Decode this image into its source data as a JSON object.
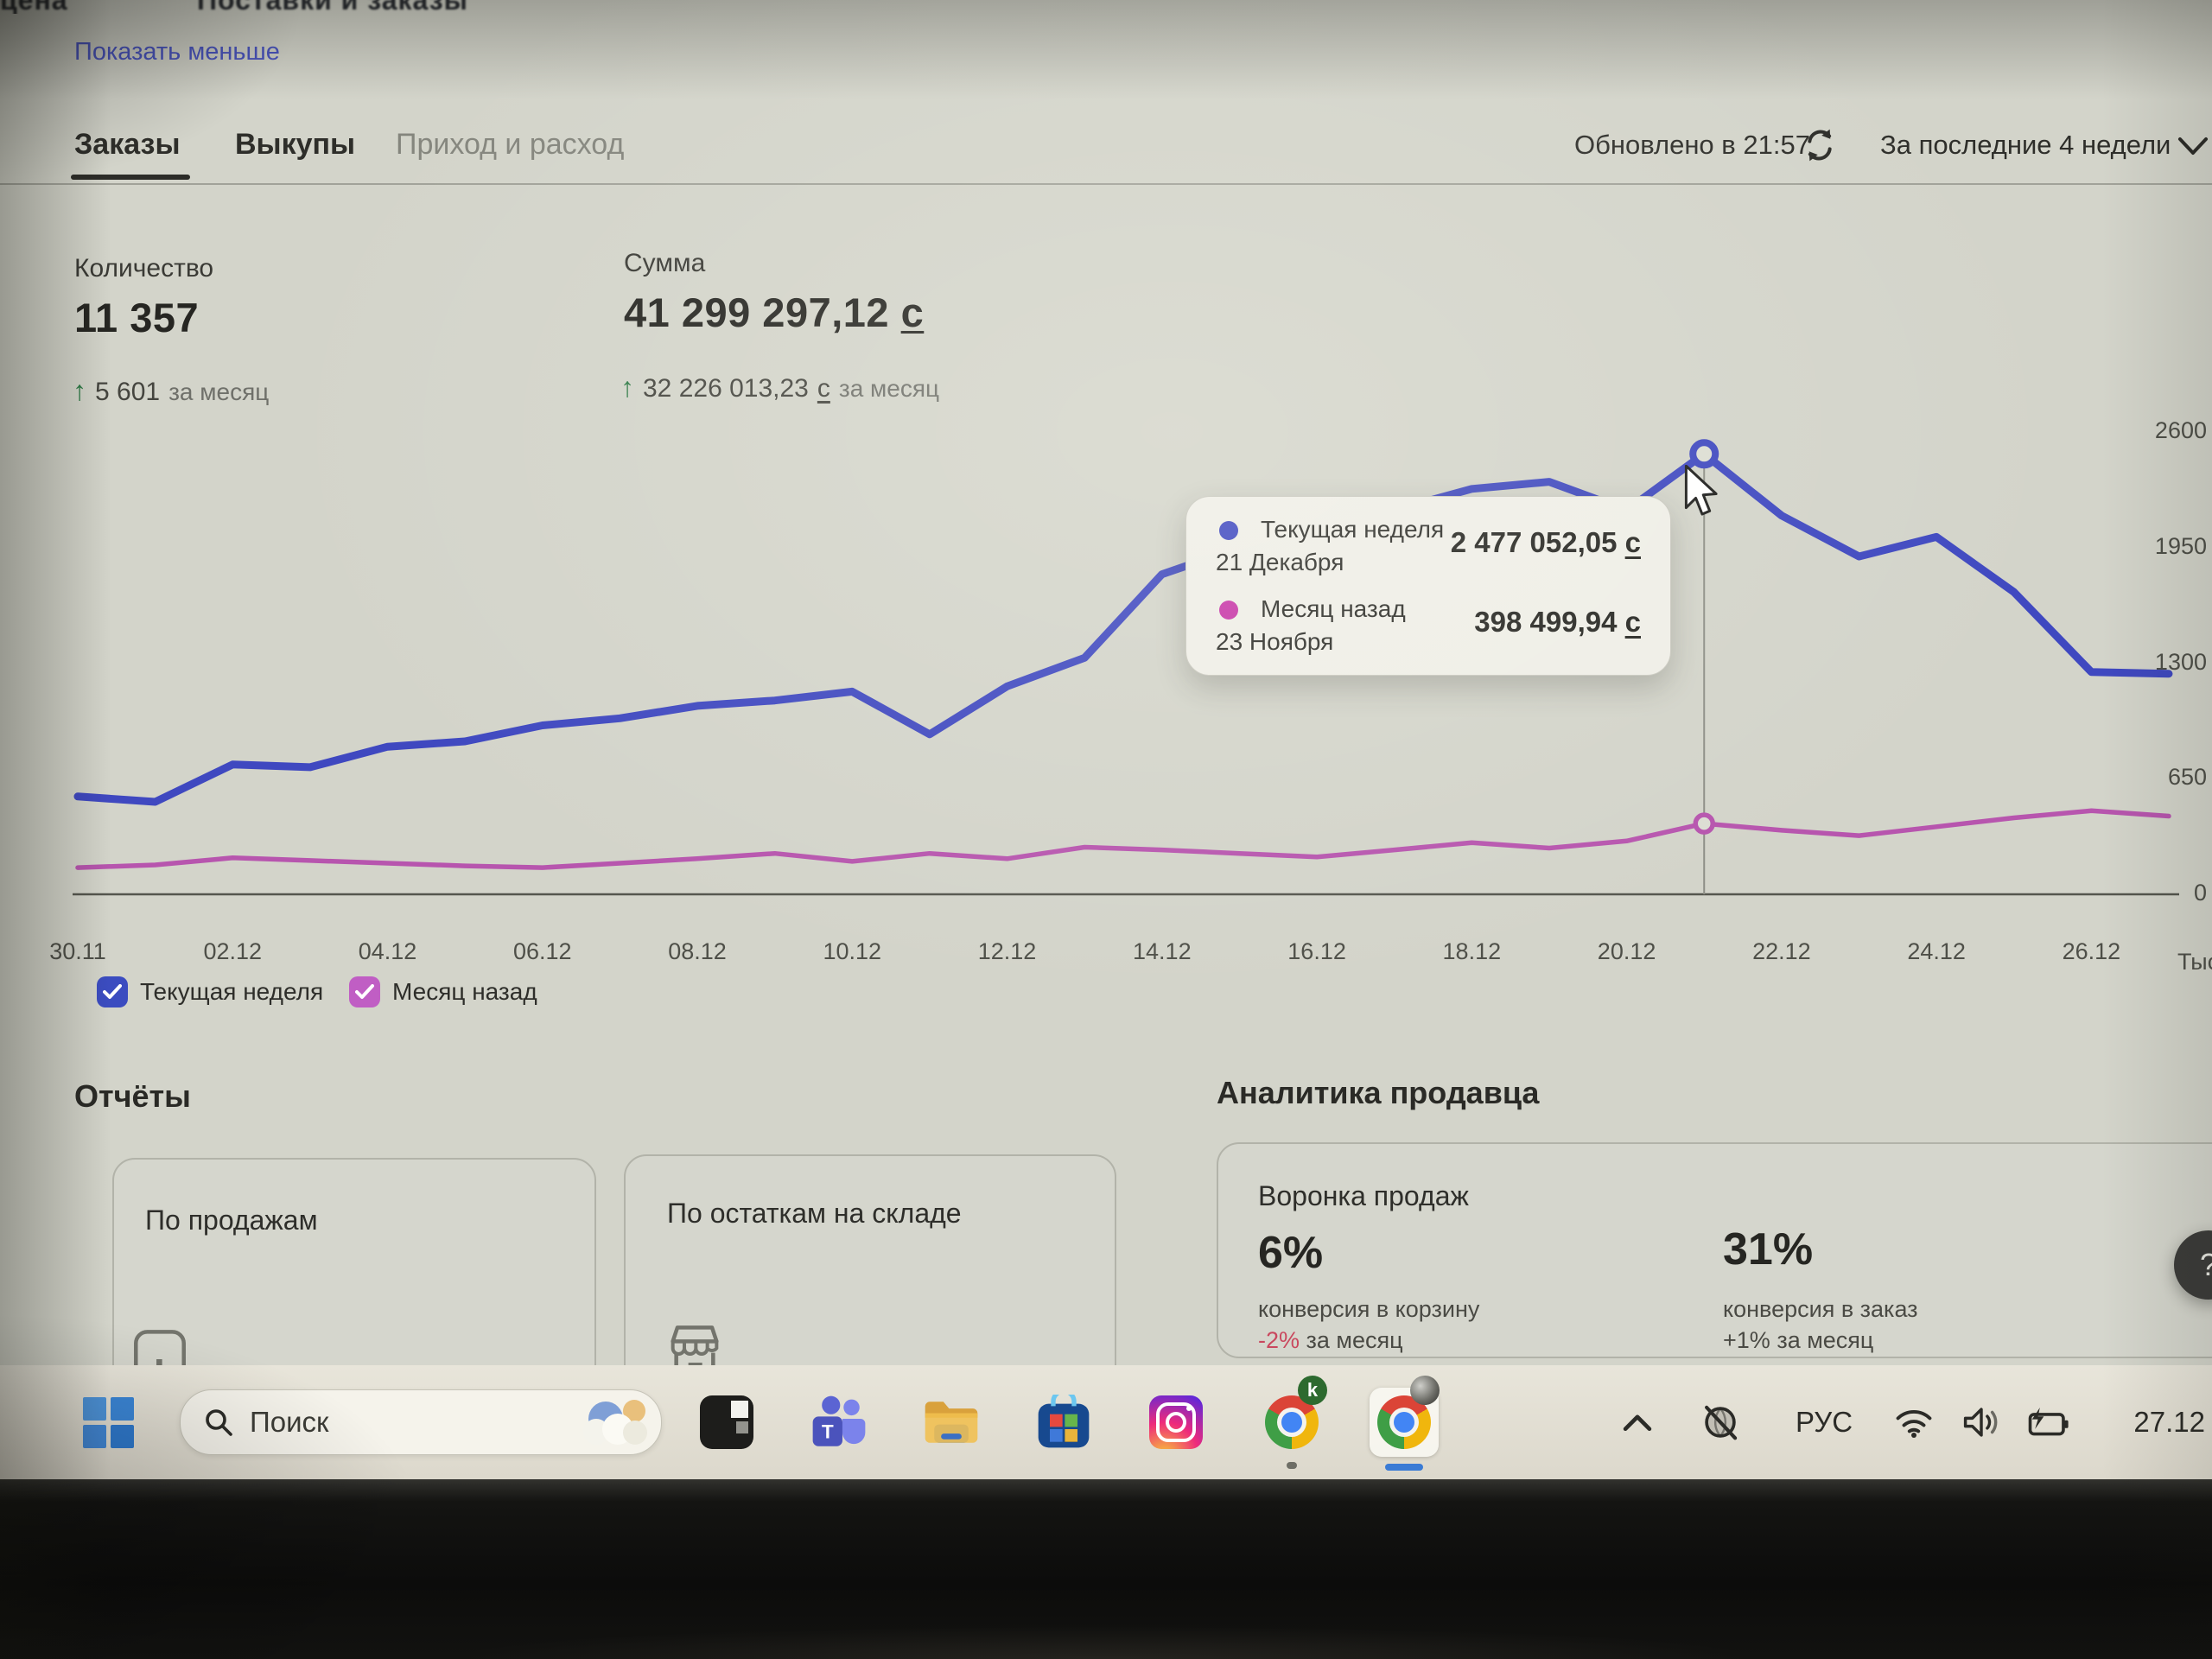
{
  "header": {
    "clipped_top_left": "цена",
    "clipped_top_center": "Поставки и заказы",
    "show_less": "Показать меньше"
  },
  "tabs": {
    "items": [
      {
        "label": "Заказы",
        "active": true
      },
      {
        "label": "Выкупы",
        "active": false
      },
      {
        "label": "Приход и расход",
        "active": false
      }
    ],
    "updated": "Обновлено в 21:57",
    "period": "За последние 4 недели"
  },
  "stats": {
    "quantity": {
      "label": "Количество",
      "value": "11 357",
      "delta": "5 601",
      "delta_suffix": "за месяц"
    },
    "sum": {
      "label": "Сумма",
      "value": "41 299 297,12",
      "currency": "с",
      "delta": "32 226 013,23",
      "delta_currency": "с",
      "delta_suffix": "за месяц"
    }
  },
  "chart_data": {
    "type": "line",
    "x_labels": [
      "30.11",
      "02.12",
      "04.12",
      "06.12",
      "08.12",
      "10.12",
      "12.12",
      "14.12",
      "16.12",
      "18.12",
      "20.12",
      "22.12",
      "24.12",
      "26.12"
    ],
    "y_ticks": [
      0,
      650,
      1300,
      1950,
      2600
    ],
    "ylim": [
      0,
      2600
    ],
    "y_unit_label": "Тыс.",
    "grid": false,
    "legend_position": "bottom-left",
    "series": [
      {
        "name": "Текущая неделя",
        "color": "#3f48c0",
        "values": [
          550,
          520,
          730,
          715,
          830,
          860,
          950,
          990,
          1060,
          1090,
          1140,
          900,
          1170,
          1330,
          1800,
          1950,
          2060,
          2160,
          2280,
          2320,
          2160,
          2477,
          2130,
          1900,
          2010,
          1700,
          1250,
          1240
        ]
      },
      {
        "name": "Месяц назад",
        "color": "#b755ae",
        "values": [
          150,
          165,
          205,
          190,
          175,
          160,
          150,
          175,
          200,
          230,
          185,
          230,
          200,
          265,
          250,
          230,
          210,
          250,
          290,
          260,
          300,
          398,
          360,
          330,
          380,
          430,
          470,
          440
        ]
      }
    ],
    "hover_index": 21,
    "tooltip": {
      "rows": [
        {
          "series": "Текущая неделя",
          "date": "21 Декабря",
          "value": "2 477 052,05",
          "currency": "с",
          "dot_color": "#3f48c0"
        },
        {
          "series": "Месяц назад",
          "date": "23 Ноября",
          "value": "398 499,94",
          "currency": "с",
          "dot_color": "#c736a8"
        }
      ]
    },
    "legend": [
      {
        "label": "Текущая неделя",
        "color": "#3b4cc0",
        "checked": true
      },
      {
        "label": "Месяц назад",
        "color": "#c05ec4",
        "checked": true
      }
    ]
  },
  "reports": {
    "title": "Отчёты",
    "cards": [
      {
        "label": "По продажам",
        "icon": "bar-chart-icon"
      },
      {
        "label": "По остаткам на складе",
        "icon": "store-icon"
      }
    ]
  },
  "analytics": {
    "title": "Аналитика продавца",
    "card_title": "Воронка продаж",
    "metrics": [
      {
        "value": "6%",
        "label": "конверсия в корзину",
        "delta": "-2%",
        "delta_suffix": "за месяц",
        "delta_negative": true
      },
      {
        "value": "31%",
        "label": "конверсия в заказ",
        "delta": "+1%",
        "delta_suffix": "за месяц",
        "delta_negative": false
      }
    ]
  },
  "help_button": "?",
  "taskbar": {
    "search_placeholder": "Поиск",
    "language": "РУС",
    "date": "27.12",
    "chrome_badge_letter": "k",
    "icons": [
      "start",
      "search",
      "weather",
      "dark-app",
      "teams",
      "file-explorer",
      "microsoft-store",
      "instagram",
      "chrome-profile-k",
      "chrome-active"
    ],
    "tray": [
      "hidden-icons-chevron",
      "no-internet-globe",
      "language",
      "wifi",
      "volume",
      "battery-charging",
      "date"
    ]
  },
  "colors": {
    "background": "#d3d4ca",
    "accent_link": "#4a55c2",
    "line_current_week": "#3f48c0",
    "line_month_ago": "#b755ae",
    "green_delta": "#2f7a46",
    "negative_delta": "#c9485e",
    "taskbar": "#e0ddd2"
  }
}
